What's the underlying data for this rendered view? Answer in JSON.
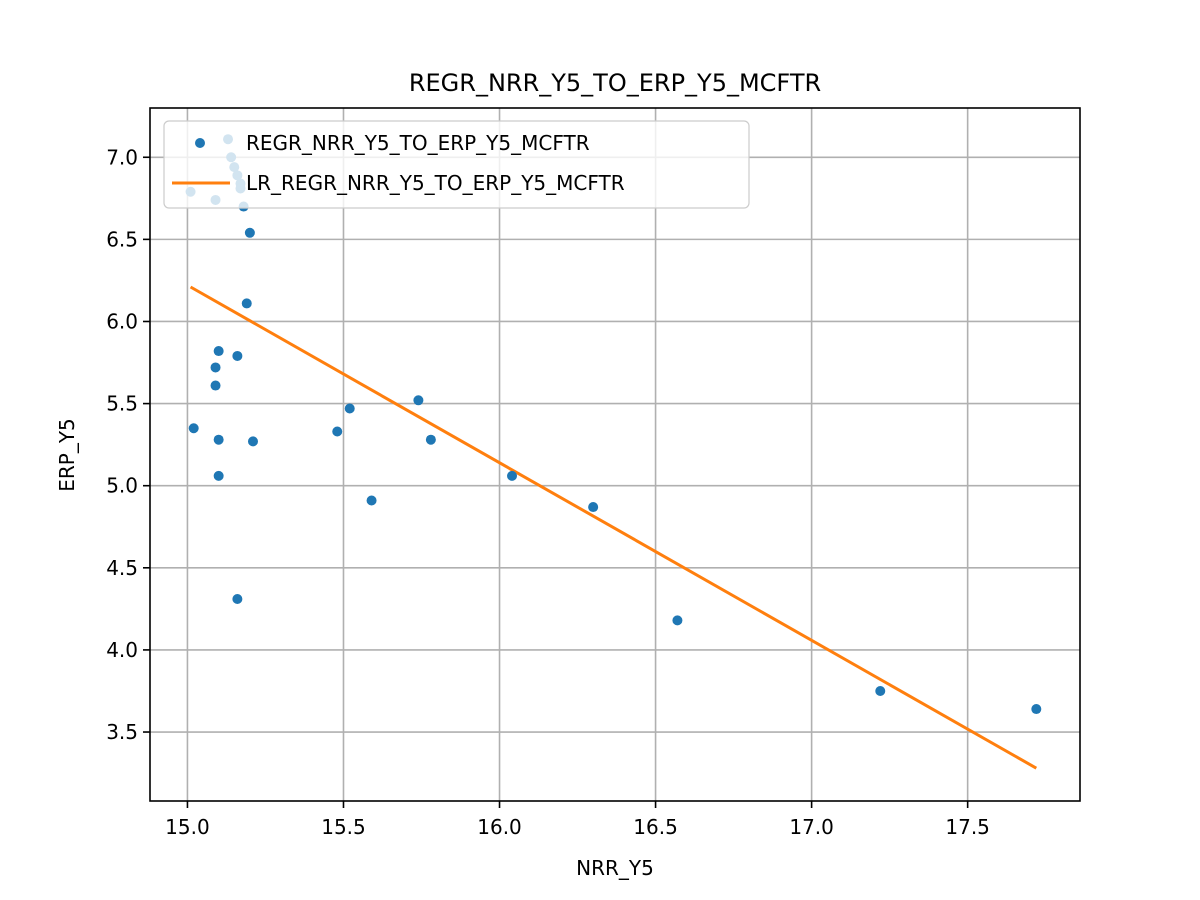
{
  "chart_data": {
    "type": "scatter",
    "title": "REGR_NRR_Y5_TO_ERP_Y5_MCFTR",
    "xlabel": "NRR_Y5",
    "ylabel": "ERP_Y5",
    "xlim": [
      14.88,
      17.86
    ],
    "ylim": [
      3.08,
      7.3
    ],
    "xticks": [
      15.0,
      15.5,
      16.0,
      16.5,
      17.0,
      17.5
    ],
    "xtick_labels": [
      "15.0",
      "15.5",
      "16.0",
      "16.5",
      "17.0",
      "17.5"
    ],
    "yticks": [
      3.5,
      4.0,
      4.5,
      5.0,
      5.5,
      6.0,
      6.5,
      7.0
    ],
    "ytick_labels": [
      "3.5",
      "4.0",
      "4.5",
      "5.0",
      "5.5",
      "6.0",
      "6.5",
      "7.0"
    ],
    "grid": true,
    "legend_position": "upper-left",
    "series": [
      {
        "name": "REGR_NRR_Y5_TO_ERP_Y5_MCFTR",
        "kind": "scatter",
        "color": "#1f77b4",
        "points": [
          {
            "x": 15.01,
            "y": 6.79
          },
          {
            "x": 15.09,
            "y": 6.74
          },
          {
            "x": 15.13,
            "y": 7.11
          },
          {
            "x": 15.14,
            "y": 7.0
          },
          {
            "x": 15.15,
            "y": 6.94
          },
          {
            "x": 15.16,
            "y": 6.89
          },
          {
            "x": 15.17,
            "y": 6.84
          },
          {
            "x": 15.17,
            "y": 6.81
          },
          {
            "x": 15.18,
            "y": 6.7
          },
          {
            "x": 15.2,
            "y": 6.54
          },
          {
            "x": 15.19,
            "y": 6.11
          },
          {
            "x": 15.1,
            "y": 5.82
          },
          {
            "x": 15.16,
            "y": 5.79
          },
          {
            "x": 15.09,
            "y": 5.72
          },
          {
            "x": 15.09,
            "y": 5.61
          },
          {
            "x": 15.02,
            "y": 5.35
          },
          {
            "x": 15.1,
            "y": 5.28
          },
          {
            "x": 15.21,
            "y": 5.27
          },
          {
            "x": 15.1,
            "y": 5.06
          },
          {
            "x": 15.16,
            "y": 4.31
          },
          {
            "x": 15.48,
            "y": 5.33
          },
          {
            "x": 15.52,
            "y": 5.47
          },
          {
            "x": 15.59,
            "y": 4.91
          },
          {
            "x": 15.74,
            "y": 5.52
          },
          {
            "x": 15.78,
            "y": 5.28
          },
          {
            "x": 16.04,
            "y": 5.06
          },
          {
            "x": 16.3,
            "y": 4.87
          },
          {
            "x": 16.57,
            "y": 4.18
          },
          {
            "x": 17.22,
            "y": 3.75
          },
          {
            "x": 17.72,
            "y": 3.64
          }
        ]
      },
      {
        "name": "LR_REGR_NRR_Y5_TO_ERP_Y5_MCFTR",
        "kind": "line",
        "color": "#ff7f0e",
        "points": [
          {
            "x": 15.01,
            "y": 6.21
          },
          {
            "x": 17.72,
            "y": 3.28
          }
        ]
      }
    ]
  }
}
